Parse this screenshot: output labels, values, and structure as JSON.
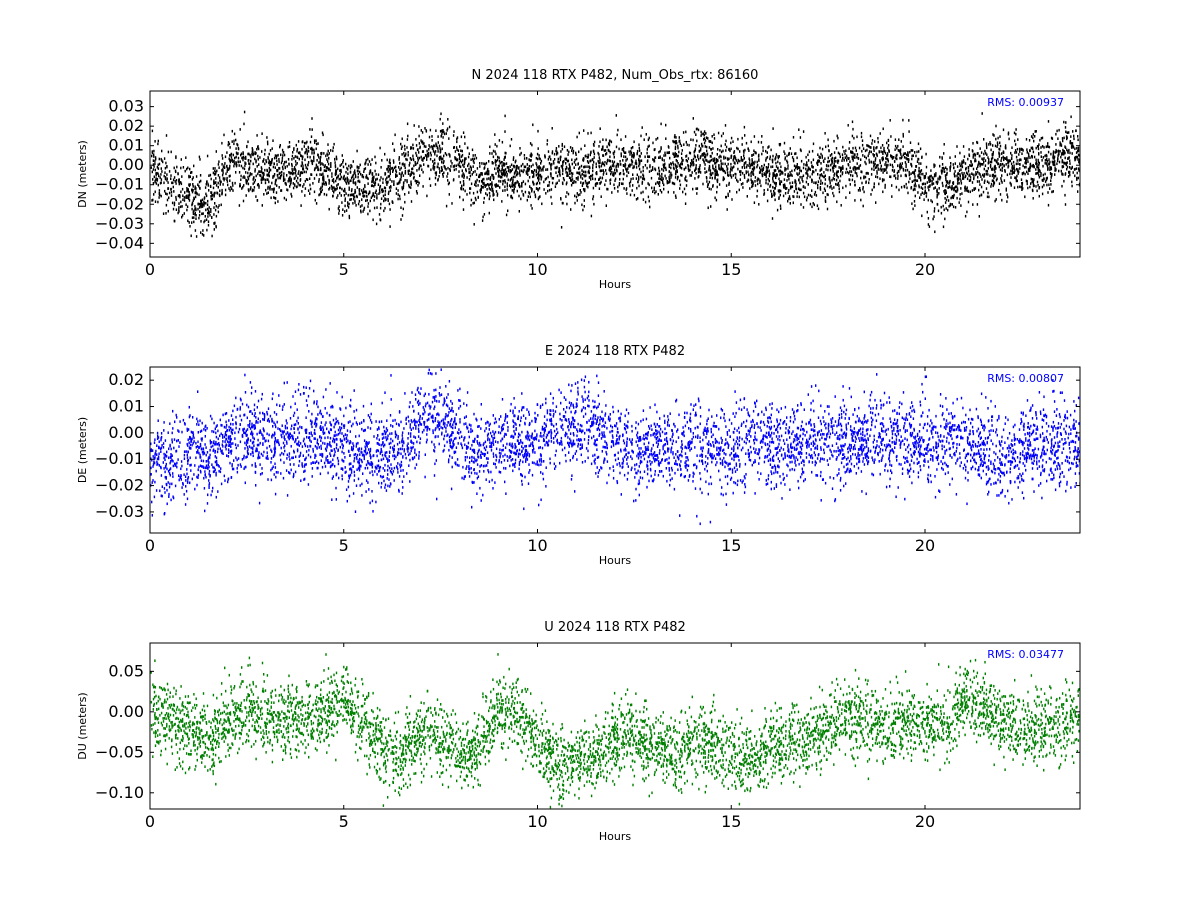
{
  "chart_data": [
    {
      "type": "scatter",
      "title": "N 2024 118 RTX  P482, Num_Obs_rtx: 86160",
      "xlabel": "Hours",
      "ylabel": "DN (meters)",
      "xlim": [
        0,
        24
      ],
      "ylim": [
        -0.047,
        0.038
      ],
      "xticks": [
        0,
        5,
        10,
        15,
        20
      ],
      "yticks": [
        -0.04,
        -0.03,
        -0.02,
        -0.01,
        0.0,
        0.01,
        0.02,
        0.03
      ],
      "ytick_labels": [
        "−0.04",
        "−0.03",
        "−0.02",
        "−0.01",
        "0.00",
        "0.01",
        "0.02",
        "0.03"
      ],
      "annotation": "RMS:  0.00937",
      "color": "#000000",
      "grid": false,
      "series": [
        {
          "x": [
            0,
            0.5,
            1,
            1.5,
            2,
            2.5,
            3,
            3.5,
            4,
            4.5,
            5,
            5.5,
            6,
            6.5,
            7,
            7.5,
            8,
            8.5,
            9,
            9.5,
            10,
            10.5,
            11,
            11.5,
            12,
            12.5,
            13,
            13.5,
            14,
            14.5,
            15,
            15.5,
            16,
            16.5,
            17,
            17.5,
            18,
            18.5,
            19,
            19.5,
            20,
            20.5,
            21,
            21.5,
            22,
            22.5,
            23,
            23.5,
            24
          ],
          "y": [
            0.0,
            -0.01,
            -0.015,
            -0.02,
            0.0,
            0.0,
            -0.002,
            -0.003,
            0.002,
            0.0,
            -0.008,
            -0.01,
            -0.008,
            -0.002,
            0.004,
            0.008,
            0.0,
            -0.01,
            -0.004,
            -0.005,
            -0.005,
            0.0,
            -0.005,
            0.0,
            0.002,
            0.0,
            0.0,
            0.0,
            0.003,
            0.0,
            0.0,
            -0.002,
            -0.004,
            -0.005,
            -0.005,
            -0.003,
            0.002,
            0.0,
            0.003,
            0.002,
            -0.01,
            -0.01,
            -0.005,
            0.0,
            0.0,
            0.0,
            0.0,
            0.005,
            0.004
          ],
          "spread": 0.008
        }
      ]
    },
    {
      "type": "scatter",
      "title": "E 2024 118 RTX  P482",
      "xlabel": "Hours",
      "ylabel": "DE (meters)",
      "xlim": [
        0,
        24
      ],
      "ylim": [
        -0.038,
        0.025
      ],
      "xticks": [
        0,
        5,
        10,
        15,
        20
      ],
      "yticks": [
        -0.03,
        -0.02,
        -0.01,
        0.0,
        0.01,
        0.02
      ],
      "ytick_labels": [
        "−0.03",
        "−0.02",
        "−0.01",
        "0.00",
        "0.01",
        "0.02"
      ],
      "annotation": "RMS:  0.00807",
      "color": "#0000ff",
      "grid": false,
      "series": [
        {
          "x": [
            0,
            0.5,
            1,
            1.5,
            2,
            2.5,
            3,
            3.5,
            4,
            4.5,
            5,
            5.5,
            6,
            6.5,
            7,
            7.5,
            8,
            8.5,
            9,
            9.5,
            10,
            10.5,
            11,
            11.5,
            12,
            12.5,
            13,
            13.5,
            14,
            14.5,
            15,
            15.5,
            16,
            16.5,
            17,
            17.5,
            18,
            18.5,
            19,
            19.5,
            20,
            20.5,
            21,
            21.5,
            22,
            22.5,
            23,
            23.5,
            24
          ],
          "y": [
            -0.01,
            -0.01,
            -0.006,
            -0.01,
            -0.004,
            0.0,
            -0.002,
            -0.003,
            0.0,
            -0.003,
            -0.005,
            -0.01,
            -0.008,
            -0.006,
            0.004,
            0.006,
            -0.004,
            -0.006,
            -0.004,
            -0.004,
            -0.004,
            0.0,
            0.004,
            0.002,
            -0.003,
            -0.006,
            -0.006,
            -0.006,
            -0.004,
            -0.006,
            -0.005,
            -0.003,
            -0.004,
            -0.004,
            -0.003,
            -0.003,
            -0.003,
            -0.002,
            -0.002,
            -0.003,
            -0.003,
            -0.004,
            -0.003,
            -0.005,
            -0.01,
            -0.006,
            -0.005,
            -0.004,
            -0.003
          ],
          "spread": 0.008
        }
      ]
    },
    {
      "type": "scatter",
      "title": "U 2024 118 RTX  P482",
      "xlabel": "Hours",
      "ylabel": "DU (meters)",
      "xlim": [
        0,
        24
      ],
      "ylim": [
        -0.12,
        0.085
      ],
      "xticks": [
        0,
        5,
        10,
        15,
        20
      ],
      "yticks": [
        -0.1,
        -0.05,
        0.0,
        0.05
      ],
      "ytick_labels": [
        "−0.10",
        "−0.05",
        "0.00",
        "0.05"
      ],
      "annotation": "RMS:  0.03477",
      "color": "#008000",
      "grid": false,
      "series": [
        {
          "x": [
            0,
            0.5,
            1,
            1.5,
            2,
            2.5,
            3,
            3.5,
            4,
            4.5,
            5,
            5.5,
            6,
            6.5,
            7,
            7.5,
            8,
            8.5,
            9,
            9.5,
            10,
            10.5,
            11,
            11.5,
            12,
            12.5,
            13,
            13.5,
            14,
            14.5,
            15,
            15.5,
            16,
            16.5,
            17,
            17.5,
            18,
            18.5,
            19,
            19.5,
            20,
            20.5,
            21,
            21.5,
            22,
            22.5,
            23,
            23.5,
            24
          ],
          "y": [
            0.0,
            -0.01,
            -0.02,
            -0.04,
            -0.005,
            0.0,
            -0.005,
            -0.01,
            -0.005,
            0.0,
            0.02,
            -0.015,
            -0.045,
            -0.05,
            -0.02,
            -0.03,
            -0.055,
            -0.04,
            0.005,
            0.0,
            -0.04,
            -0.065,
            -0.055,
            -0.05,
            -0.035,
            -0.03,
            -0.04,
            -0.05,
            -0.035,
            -0.04,
            -0.05,
            -0.055,
            -0.045,
            -0.03,
            -0.035,
            -0.02,
            -0.005,
            -0.01,
            -0.02,
            -0.01,
            -0.015,
            -0.02,
            0.02,
            0.005,
            -0.01,
            -0.02,
            -0.02,
            -0.015,
            -0.01
          ],
          "spread": 0.022
        }
      ]
    }
  ]
}
